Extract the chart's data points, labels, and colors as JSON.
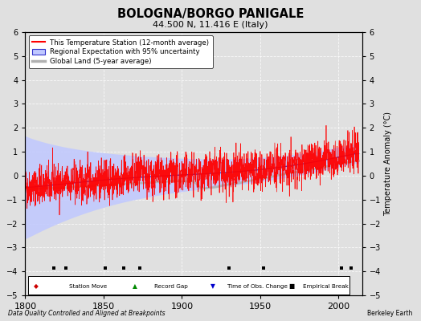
{
  "title": "BOLOGNA/BORGO PANIGALE",
  "subtitle": "44.500 N, 11.416 E (Italy)",
  "ylabel": "Temperature Anomaly (°C)",
  "xlabel_note": "Data Quality Controlled and Aligned at Breakpoints",
  "source_note": "Berkeley Earth",
  "xlim": [
    1800,
    2015
  ],
  "ylim": [
    -5,
    6
  ],
  "yticks": [
    -5,
    -4,
    -3,
    -2,
    -1,
    0,
    1,
    2,
    3,
    4,
    5,
    6
  ],
  "xticks": [
    1800,
    1850,
    1900,
    1950,
    2000
  ],
  "bg_color": "#e0e0e0",
  "plot_bg_color": "#e0e0e0",
  "station_line_color": "#ff0000",
  "regional_line_color": "#3333cc",
  "regional_fill_color": "#c0c8ff",
  "global_line_color": "#b0b0b0",
  "legend_entries": [
    "This Temperature Station (12-month average)",
    "Regional Expectation with 95% uncertainty",
    "Global Land (5-year average)"
  ],
  "empirical_break_years": [
    1818,
    1826,
    1851,
    1863,
    1873,
    1930,
    1952,
    2002,
    2008
  ],
  "seed": 42
}
